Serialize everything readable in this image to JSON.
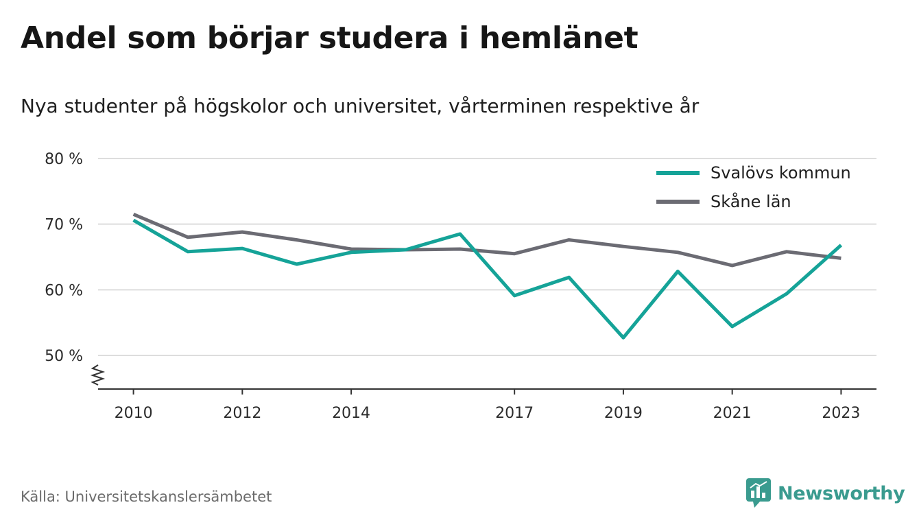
{
  "title": "Andel som börjar studera i hemlänet",
  "subtitle": "Nya studenter på högskolor och universitet, vårterminen respektive år",
  "source": "Källa: Universitetskanslersämbetet",
  "brand": "Newsworthy",
  "colors": {
    "series1": "#15a398",
    "series2": "#6b6b73",
    "grid": "#dddddd",
    "brand": "#3a9b8f"
  },
  "chart_data": {
    "type": "line",
    "ylim": [
      45,
      80
    ],
    "y_ticks": [
      {
        "value": 50,
        "label": "50 %"
      },
      {
        "value": 60,
        "label": "60 %"
      },
      {
        "value": 70,
        "label": "70 %"
      },
      {
        "value": 80,
        "label": "80 %"
      }
    ],
    "x_ticks": [
      2010,
      2012,
      2014,
      2017,
      2019,
      2021,
      2023
    ],
    "xlim": [
      2009.35,
      2023.65
    ],
    "axis_break": true,
    "legend_position": "top-right",
    "x": [
      2010,
      2011,
      2012,
      2013,
      2014,
      2015,
      2016,
      2017,
      2018,
      2019,
      2020,
      2021,
      2022,
      2023
    ],
    "series": [
      {
        "name": "Svalövs kommun",
        "color": "#15a398",
        "values": [
          70.6,
          65.8,
          66.3,
          63.9,
          65.7,
          66.1,
          68.5,
          59.1,
          61.9,
          52.7,
          62.8,
          54.4,
          59.4,
          66.8
        ]
      },
      {
        "name": "Skåne län",
        "color": "#6b6b73",
        "values": [
          71.5,
          68.0,
          68.8,
          67.6,
          66.2,
          66.1,
          66.2,
          65.5,
          67.6,
          66.6,
          65.7,
          63.7,
          65.8,
          64.8
        ]
      }
    ]
  }
}
